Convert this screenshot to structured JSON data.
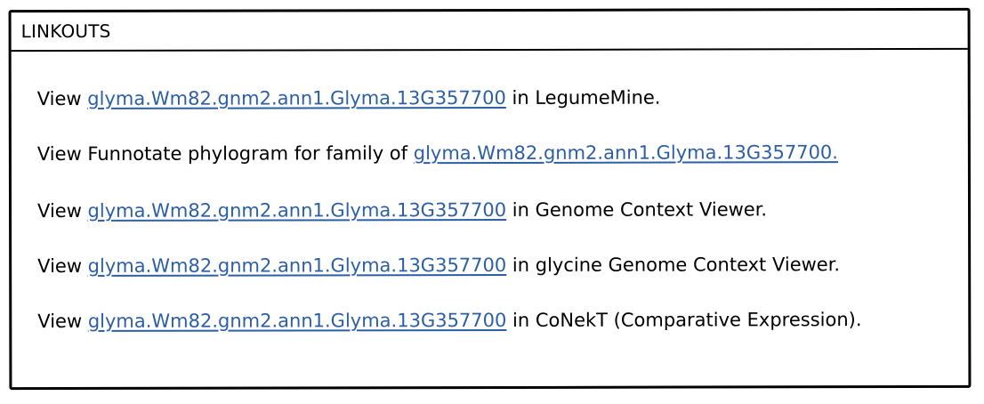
{
  "panel": {
    "title": "LINKOUTS"
  },
  "links": [
    {
      "prefix": "View ",
      "link_text": "glyma.Wm82.gnm2.ann1.Glyma.13G357700",
      "suffix": " in LegumeMine."
    },
    {
      "prefix": "View Funnotate phylogram for family of ",
      "link_text": "glyma.Wm82.gnm2.ann1.Glyma.13G357700.",
      "suffix": ""
    },
    {
      "prefix": "View ",
      "link_text": "glyma.Wm82.gnm2.ann1.Glyma.13G357700",
      "suffix": " in Genome Context Viewer."
    },
    {
      "prefix": "View ",
      "link_text": "glyma.Wm82.gnm2.ann1.Glyma.13G357700",
      "suffix": " in glycine Genome Context Viewer."
    },
    {
      "prefix": "View ",
      "link_text": "glyma.Wm82.gnm2.ann1.Glyma.13G357700",
      "suffix": " in CoNekT (Comparative Expression)."
    }
  ],
  "colors": {
    "link": "#2c5fa3",
    "border": "#000000",
    "background": "#ffffff"
  }
}
